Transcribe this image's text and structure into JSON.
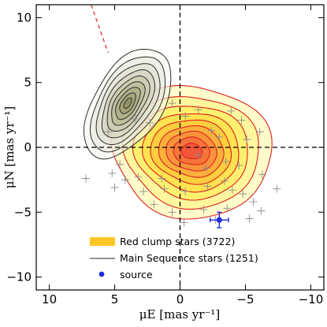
{
  "chart_data": {
    "type": "scatter",
    "title": "",
    "xlabel": "μE [mas yr⁻¹]",
    "ylabel": "μN [mas yr⁻¹]",
    "xlim": [
      11,
      -11
    ],
    "ylim": [
      -11,
      11
    ],
    "x_ticks": [
      10,
      5,
      0,
      -5,
      -10
    ],
    "y_ticks": [
      10,
      5,
      0,
      -5,
      -10
    ],
    "x_tick_labels": [
      "10",
      "5",
      "0",
      "−5",
      "−10"
    ],
    "y_tick_labels": [
      "10",
      "5",
      "0",
      "−5",
      "−10"
    ],
    "legend": {
      "placement": "bottom-left",
      "entries": [
        "Red clump stars (3722)",
        "Main Sequence stars (1251)",
        "source"
      ]
    },
    "series": [
      {
        "name": "Red clump stars (3722)",
        "kind": "filled-contours",
        "center": [
          -0.9,
          -0.3
        ],
        "levels": [
          {
            "rx": 6.1,
            "ry": 5.1,
            "color": "#fffbc6"
          },
          {
            "rx": 5.2,
            "ry": 4.3,
            "color": "#fff59a"
          },
          {
            "rx": 4.4,
            "ry": 3.6,
            "color": "#fff06b"
          },
          {
            "rx": 3.7,
            "ry": 3.0,
            "color": "#ffe24d"
          },
          {
            "rx": 3.1,
            "ry": 2.45,
            "color": "#fdcc3d"
          },
          {
            "rx": 2.5,
            "ry": 1.95,
            "color": "#fbae3c"
          },
          {
            "rx": 1.95,
            "ry": 1.5,
            "color": "#f8903c"
          },
          {
            "rx": 1.4,
            "ry": 1.05,
            "color": "#f5723b"
          },
          {
            "rx": 0.8,
            "ry": 0.6,
            "color": "#f2553a"
          }
        ],
        "line_color": "#dc2020",
        "outliers": [
          [
            7.2,
            -2.4
          ],
          [
            5.2,
            -2.0
          ],
          [
            5.0,
            -3.1
          ],
          [
            4.2,
            -2.5
          ],
          [
            3.2,
            -2.3
          ],
          [
            2.8,
            -3.4
          ],
          [
            1.2,
            -3.2
          ],
          [
            -0.4,
            -3.4
          ],
          [
            -2.1,
            -3.0
          ],
          [
            -3.4,
            -2.6
          ],
          [
            -4.0,
            -3.3
          ],
          [
            -4.8,
            -3.6
          ],
          [
            -5.6,
            -4.2
          ],
          [
            -6.2,
            -4.9
          ],
          [
            -5.3,
            -5.5
          ],
          [
            -3.6,
            -4.7
          ],
          [
            -1.8,
            -4.8
          ],
          [
            0.6,
            -5.0
          ],
          [
            2.0,
            -4.4
          ],
          [
            -6.1,
            1.2
          ],
          [
            -3.9,
            2.8
          ],
          [
            -4.7,
            2.1
          ],
          [
            -2.4,
            1.3
          ],
          [
            -3.0,
            0.8
          ],
          [
            -0.4,
            2.4
          ],
          [
            0.6,
            3.4
          ],
          [
            -1.4,
            2.9
          ],
          [
            -5.1,
            0.6
          ],
          [
            5.5,
            1.2
          ],
          [
            3.4,
            2.2
          ],
          [
            2.3,
            1.9
          ],
          [
            -2.0,
            -1.6
          ],
          [
            -1.4,
            -0.6
          ],
          [
            -3.5,
            -1.1
          ],
          [
            -4.5,
            -1.4
          ],
          [
            4.6,
            -1.3
          ],
          [
            1.4,
            -2.4
          ],
          [
            -0.3,
            -5.8
          ],
          [
            -2.7,
            -5.6
          ],
          [
            -6.3,
            -2.1
          ],
          [
            -7.4,
            -3.2
          ]
        ]
      },
      {
        "name": "Main Sequence stars (1251)",
        "kind": "line-contours",
        "center": [
          4.0,
          3.4
        ],
        "angle": -58,
        "levels": [
          {
            "rx": 4.7,
            "ry": 2.6
          },
          {
            "rx": 4.1,
            "ry": 2.2
          },
          {
            "rx": 3.5,
            "ry": 1.85
          },
          {
            "rx": 2.95,
            "ry": 1.5
          },
          {
            "rx": 2.4,
            "ry": 1.2
          },
          {
            "rx": 1.9,
            "ry": 0.93
          },
          {
            "rx": 1.4,
            "ry": 0.68
          },
          {
            "rx": 0.9,
            "ry": 0.45
          },
          {
            "rx": 0.45,
            "ry": 0.22
          }
        ],
        "shade_colors": [
          "#f4f4ec",
          "#e8e8dc",
          "#dcdccb",
          "#cfcfb8",
          "#c2c2a3",
          "#b4b48e",
          "#a6a67a",
          "#989866",
          "#8a8a55"
        ],
        "line_color": "#2d2d2d"
      },
      {
        "name": "source",
        "kind": "point",
        "x": -3.0,
        "y": -5.6,
        "x_err": 0.7,
        "y_err": 0.6,
        "color": "#1f2fd9"
      }
    ],
    "annotations": [
      {
        "kind": "line",
        "style": "dashed",
        "color": "#000000",
        "x": 0
      },
      {
        "kind": "line",
        "style": "dashed",
        "color": "#000000",
        "y": 0
      },
      {
        "kind": "circle",
        "style": "dashed",
        "color": "#888888",
        "center": [
          0,
          0
        ],
        "radius": 10.4
      },
      {
        "kind": "line",
        "style": "dashed",
        "color": "#dd2222",
        "from": [
          6.8,
          11
        ],
        "to": [
          5.5,
          7.3
        ]
      }
    ],
    "grid": false
  }
}
